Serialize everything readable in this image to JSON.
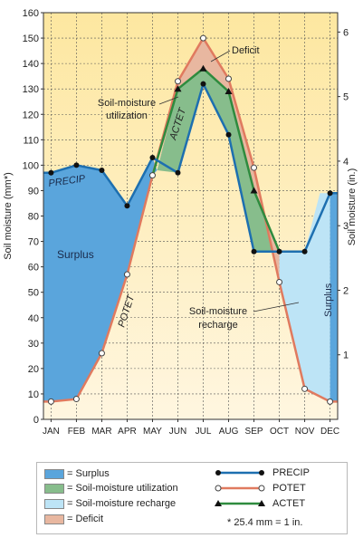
{
  "chart_data": {
    "type": "line",
    "categories": [
      "JAN",
      "FEB",
      "MAR",
      "APR",
      "MAY",
      "JUN",
      "JUL",
      "AUG",
      "SEP",
      "OCT",
      "NOV",
      "DEC"
    ],
    "series": [
      {
        "name": "PRECIP",
        "values": [
          97,
          100,
          98,
          84,
          103,
          97,
          132,
          112,
          66,
          66,
          66,
          89
        ],
        "color": "#1d6fb0"
      },
      {
        "name": "POTET",
        "values": [
          7,
          8,
          26,
          57,
          96,
          133,
          150,
          134,
          99,
          54,
          12,
          7
        ],
        "color": "#e07a5f"
      },
      {
        "name": "ACTET",
        "values": [
          null,
          null,
          null,
          null,
          96,
          130,
          138,
          129,
          90,
          66,
          null,
          null
        ],
        "color": "#2e8b3e"
      }
    ],
    "ylabel": "Soil moisture (mm*)",
    "y2label": "Soil moisture (in.)",
    "ylim": [
      0,
      160
    ],
    "yticks": [
      0,
      10,
      20,
      30,
      40,
      50,
      60,
      70,
      80,
      90,
      100,
      110,
      120,
      130,
      140,
      150,
      160
    ],
    "y2lim": [
      0,
      6.3
    ],
    "y2ticks": [
      1,
      2,
      3,
      4,
      5,
      6
    ],
    "grid": true,
    "annotations": {
      "deficit": "Deficit",
      "utilization_1": "Soil-moisture",
      "utilization_2": "utilization",
      "precip": "PRECIP",
      "potet": "POTET",
      "actet": "ACTET",
      "surplus_left": "Surplus",
      "surplus_right": "Surplus",
      "recharge_1": "Soil-moisture",
      "recharge_2": "recharge"
    },
    "colors": {
      "surplus": "#5aa5dc",
      "utilization": "#87bd8c",
      "recharge": "#bde4f6",
      "deficit": "#e8b7a0",
      "background_top": "#fde7a0",
      "background_bottom": "#fff6e0"
    }
  },
  "legend": {
    "areas": [
      {
        "label": "= Surplus",
        "color": "#5aa5dc"
      },
      {
        "label": "= Soil-moisture utilization",
        "color": "#87bd8c"
      },
      {
        "label": "= Soil-moisture recharge",
        "color": "#bde4f6"
      },
      {
        "label": "= Deficit",
        "color": "#e8b7a0"
      }
    ],
    "lines": [
      {
        "label": "PRECIP",
        "color": "#1d6fb0",
        "marker": "dot"
      },
      {
        "label": "POTET",
        "color": "#e07a5f",
        "marker": "circle"
      },
      {
        "label": "ACTET",
        "color": "#2e8b3e",
        "marker": "triangle"
      }
    ],
    "note": "* 25.4 mm = 1 in."
  }
}
